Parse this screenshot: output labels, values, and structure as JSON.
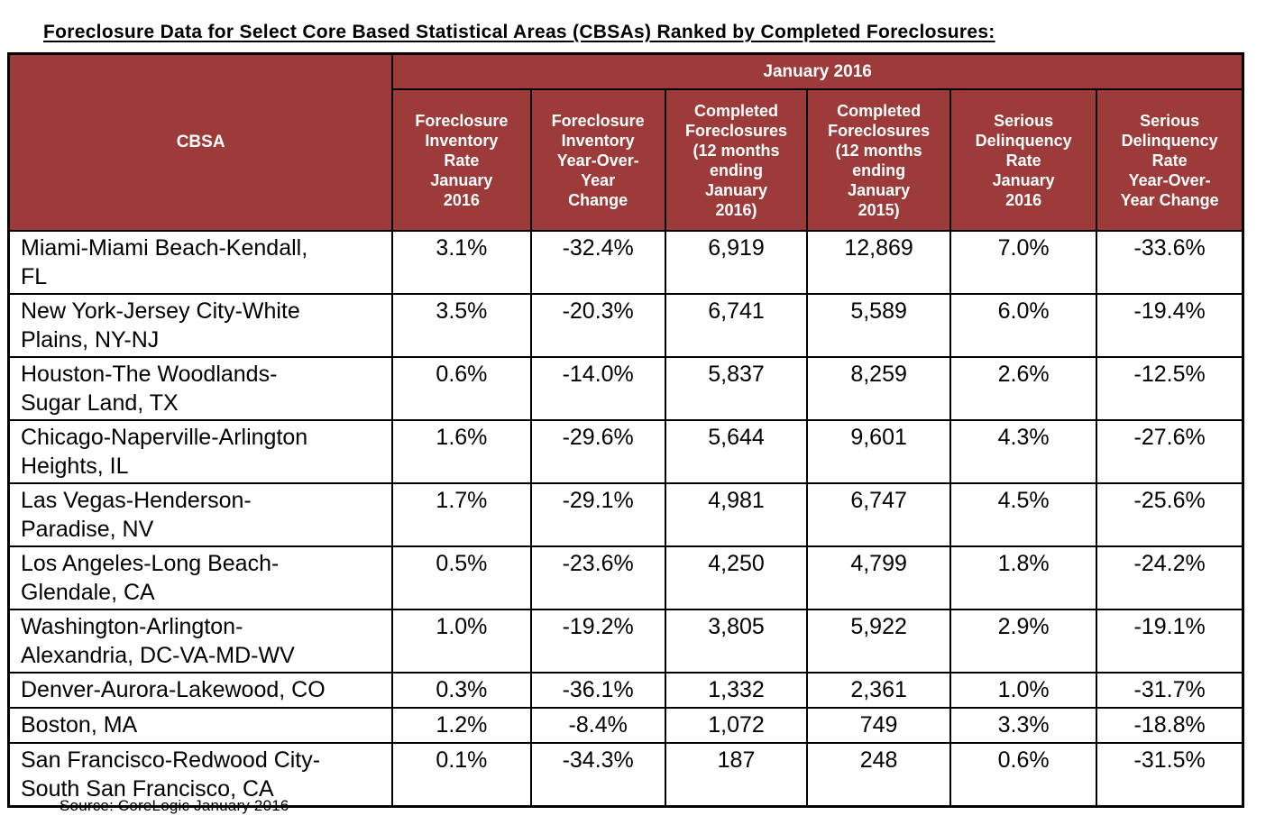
{
  "page_title": "Foreclosure Data for Select Core Based Statistical Areas (CBSAs) Ranked by Completed Foreclosures:",
  "source_note": "Source: CoreLogic  January 2016",
  "colors": {
    "header_bg": "#9D3B3A",
    "header_text": "#FFFFFF",
    "body_text": "#000000",
    "border": "#000000"
  },
  "chart_data": {
    "type": "table",
    "title": "Foreclosure Data for Select Core Based Statistical Areas (CBSAs) Ranked by Completed Foreclosures:",
    "group_header": "January 2016",
    "row_header_label": "CBSA",
    "columns": [
      "Foreclosure\nInventory\nRate\nJanuary\n2016",
      "Foreclosure\nInventory\nYear-Over-\nYear\nChange",
      "Completed\nForeclosures\n(12 months\nending\nJanuary\n2016)",
      "Completed\nForeclosures\n(12 months\nending\nJanuary\n2015)",
      "Serious\nDelinquency\nRate\nJanuary\n2016",
      "Serious\nDelinquency\nRate\nYear-Over-\nYear Change"
    ],
    "rows": [
      {
        "cbsa": "Miami-Miami Beach-Kendall,\nFL",
        "values": [
          "3.1%",
          "-32.4%",
          "6,919",
          "12,869",
          "7.0%",
          "-33.6%"
        ]
      },
      {
        "cbsa": "New York-Jersey City-White\nPlains, NY-NJ",
        "values": [
          "3.5%",
          "-20.3%",
          "6,741",
          "5,589",
          "6.0%",
          "-19.4%"
        ]
      },
      {
        "cbsa": "Houston-The Woodlands-\nSugar Land, TX",
        "values": [
          "0.6%",
          "-14.0%",
          "5,837",
          "8,259",
          "2.6%",
          "-12.5%"
        ]
      },
      {
        "cbsa": "Chicago-Naperville-Arlington\nHeights, IL",
        "values": [
          "1.6%",
          "-29.6%",
          "5,644",
          "9,601",
          "4.3%",
          "-27.6%"
        ]
      },
      {
        "cbsa": "Las Vegas-Henderson-\nParadise, NV",
        "values": [
          "1.7%",
          "-29.1%",
          "4,981",
          "6,747",
          "4.5%",
          "-25.6%"
        ]
      },
      {
        "cbsa": "Los Angeles-Long Beach-\nGlendale, CA",
        "values": [
          "0.5%",
          "-23.6%",
          "4,250",
          "4,799",
          "1.8%",
          "-24.2%"
        ]
      },
      {
        "cbsa": "Washington-Arlington-\nAlexandria, DC-VA-MD-WV",
        "values": [
          "1.0%",
          "-19.2%",
          "3,805",
          "5,922",
          "2.9%",
          "-19.1%"
        ]
      },
      {
        "cbsa": "Denver-Aurora-Lakewood, CO",
        "values": [
          "0.3%",
          "-36.1%",
          "1,332",
          "2,361",
          "1.0%",
          "-31.7%"
        ]
      },
      {
        "cbsa": "Boston, MA",
        "values": [
          "1.2%",
          "-8.4%",
          "1,072",
          "749",
          "3.3%",
          "-18.8%"
        ]
      },
      {
        "cbsa": "San Francisco-Redwood City-\nSouth San Francisco, CA",
        "values": [
          "0.1%",
          "-34.3%",
          "187",
          "248",
          "0.6%",
          "-31.5%"
        ]
      }
    ],
    "source": "Source: CoreLogic  January 2016",
    "layout_hints": {
      "header_style": "dark-red band with white bold text",
      "grid": "black 2px borders"
    }
  }
}
